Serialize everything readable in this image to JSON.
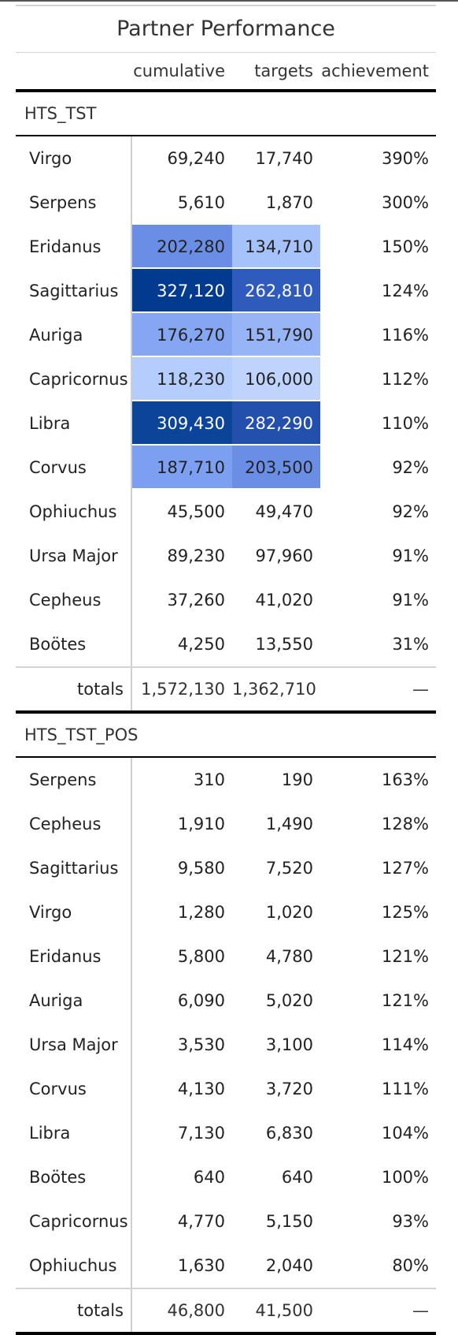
{
  "table": {
    "title": "Partner Performance",
    "columns": {
      "cumulative": "cumulative",
      "targets": "targets",
      "achievement": "achievement"
    },
    "groups": [
      {
        "name": "HTS_TST",
        "rows": [
          {
            "partner": "Virgo",
            "cumulative": "69,240",
            "targets": "17,740",
            "achievement": "390%",
            "cum_bg": "",
            "tgt_bg": ""
          },
          {
            "partner": "Serpens",
            "cumulative": "5,610",
            "targets": "1,870",
            "achievement": "300%",
            "cum_bg": "",
            "tgt_bg": ""
          },
          {
            "partner": "Eridanus",
            "cumulative": "202,280",
            "targets": "134,710",
            "achievement": "150%",
            "cum_bg": "#6a8ee6",
            "tgt_bg": "#a6c2fb"
          },
          {
            "partner": "Sagittarius",
            "cumulative": "327,120",
            "targets": "262,810",
            "achievement": "124%",
            "cum_bg": "#023a8f",
            "tgt_bg": "#2f5cbc"
          },
          {
            "partner": "Auriga",
            "cumulative": "176,270",
            "targets": "151,790",
            "achievement": "116%",
            "cum_bg": "#85a6f3",
            "tgt_bg": "#97b4f6"
          },
          {
            "partner": "Capricornus",
            "cumulative": "118,230",
            "targets": "106,000",
            "achievement": "112%",
            "cum_bg": "#b4cdfc",
            "tgt_bg": "#bed4fd"
          },
          {
            "partner": "Libra",
            "cumulative": "309,430",
            "targets": "282,290",
            "achievement": "110%",
            "cum_bg": "#0b4499",
            "tgt_bg": "#2350ac"
          },
          {
            "partner": "Corvus",
            "cumulative": "187,710",
            "targets": "203,500",
            "achievement": "92%",
            "cum_bg": "#7c9ff2",
            "tgt_bg": "#6a8ee6"
          },
          {
            "partner": "Ophiuchus",
            "cumulative": "45,500",
            "targets": "49,470",
            "achievement": "92%",
            "cum_bg": "",
            "tgt_bg": ""
          },
          {
            "partner": "Ursa Major",
            "cumulative": "89,230",
            "targets": "97,960",
            "achievement": "91%",
            "cum_bg": "",
            "tgt_bg": ""
          },
          {
            "partner": "Cepheus",
            "cumulative": "37,260",
            "targets": "41,020",
            "achievement": "91%",
            "cum_bg": "",
            "tgt_bg": ""
          },
          {
            "partner": "Boötes",
            "cumulative": "4,250",
            "targets": "13,550",
            "achievement": "31%",
            "cum_bg": "",
            "tgt_bg": ""
          }
        ],
        "totals": {
          "label": "totals",
          "cumulative": "1,572,130",
          "targets": "1,362,710",
          "achievement": "—"
        }
      },
      {
        "name": "HTS_TST_POS",
        "rows": [
          {
            "partner": "Serpens",
            "cumulative": "310",
            "targets": "190",
            "achievement": "163%",
            "cum_bg": "",
            "tgt_bg": ""
          },
          {
            "partner": "Cepheus",
            "cumulative": "1,910",
            "targets": "1,490",
            "achievement": "128%",
            "cum_bg": "",
            "tgt_bg": ""
          },
          {
            "partner": "Sagittarius",
            "cumulative": "9,580",
            "targets": "7,520",
            "achievement": "127%",
            "cum_bg": "",
            "tgt_bg": ""
          },
          {
            "partner": "Virgo",
            "cumulative": "1,280",
            "targets": "1,020",
            "achievement": "125%",
            "cum_bg": "",
            "tgt_bg": ""
          },
          {
            "partner": "Eridanus",
            "cumulative": "5,800",
            "targets": "4,780",
            "achievement": "121%",
            "cum_bg": "",
            "tgt_bg": ""
          },
          {
            "partner": "Auriga",
            "cumulative": "6,090",
            "targets": "5,020",
            "achievement": "121%",
            "cum_bg": "",
            "tgt_bg": ""
          },
          {
            "partner": "Ursa Major",
            "cumulative": "3,530",
            "targets": "3,100",
            "achievement": "114%",
            "cum_bg": "",
            "tgt_bg": ""
          },
          {
            "partner": "Corvus",
            "cumulative": "4,130",
            "targets": "3,720",
            "achievement": "111%",
            "cum_bg": "",
            "tgt_bg": ""
          },
          {
            "partner": "Libra",
            "cumulative": "7,130",
            "targets": "6,830",
            "achievement": "104%",
            "cum_bg": "",
            "tgt_bg": ""
          },
          {
            "partner": "Boötes",
            "cumulative": "640",
            "targets": "640",
            "achievement": "100%",
            "cum_bg": "",
            "tgt_bg": ""
          },
          {
            "partner": "Capricornus",
            "cumulative": "4,770",
            "targets": "5,150",
            "achievement": "93%",
            "cum_bg": "",
            "tgt_bg": ""
          },
          {
            "partner": "Ophiuchus",
            "cumulative": "1,630",
            "targets": "2,040",
            "achievement": "80%",
            "cum_bg": "",
            "tgt_bg": ""
          }
        ],
        "totals": {
          "label": "totals",
          "cumulative": "46,800",
          "targets": "41,500",
          "achievement": "—"
        }
      }
    ]
  }
}
